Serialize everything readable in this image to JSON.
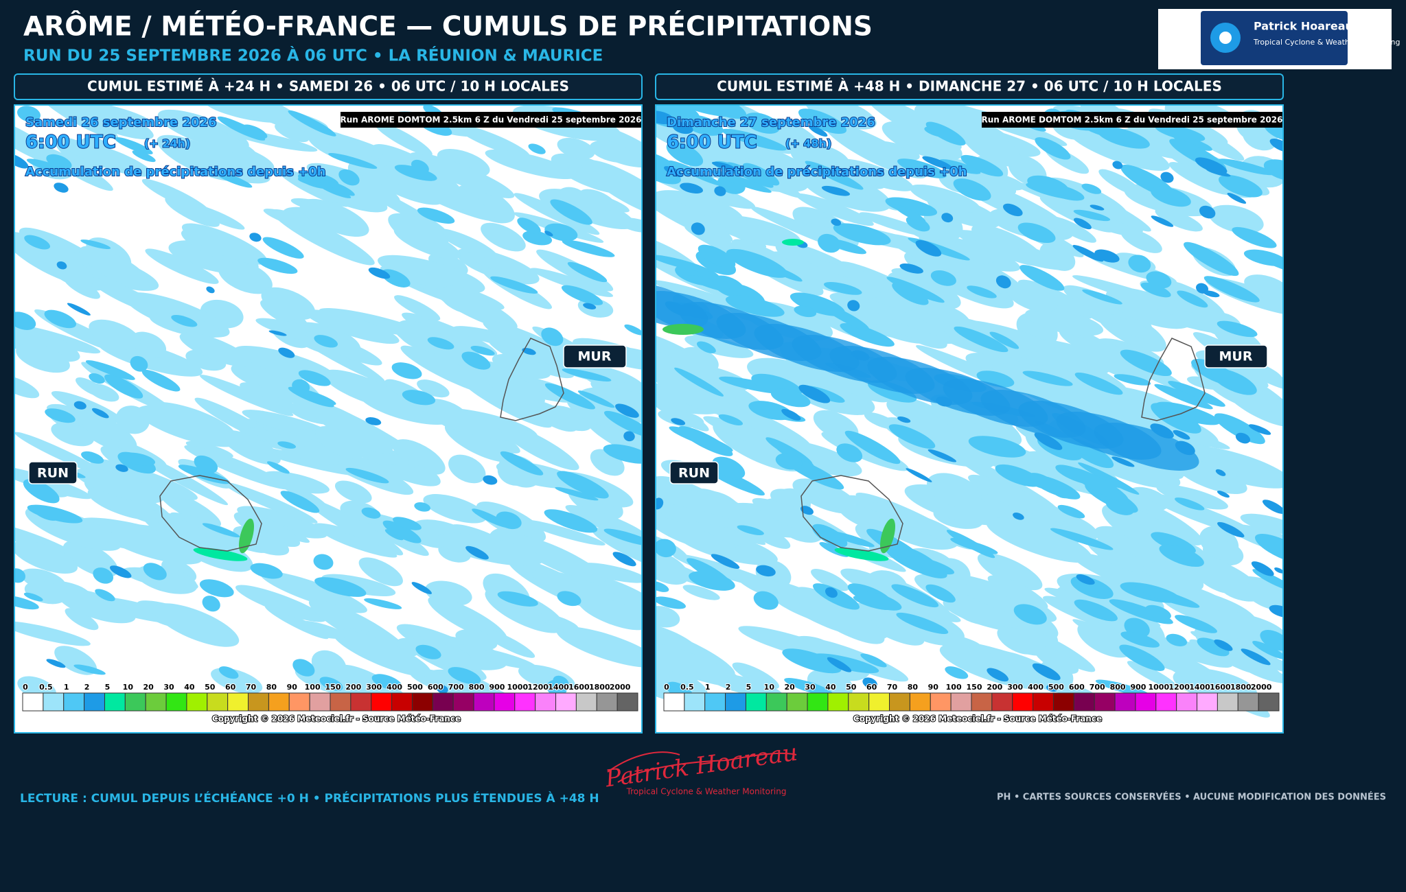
{
  "header": {
    "title": "ARÔME / MÉTÉO-FRANCE — CUMULS DE PRÉCIPITATIONS",
    "subtitle": "RUN DU 25 SEPTEMBRE 2026 À 06 UTC • LA RÉUNION & MAURICE"
  },
  "logo": {
    "name": "Patrick Hoareau",
    "tagline": "Tropical Cyclone & Weather Monitoring"
  },
  "panels": [
    {
      "header": "CUMUL ESTIMÉ À +24 H • SAMEDI 26 • 06 UTC / 10 H LOCALES",
      "map": {
        "date": "Samedi 26 septembre 2026",
        "time": "6:00 UTC",
        "lead": "(+ 24h)",
        "caption": "Accumulation de précipitations depuis +0h",
        "run_info": "Run AROME DOMTOM 2.5km 6 Z du Vendredi 25 septembre 2026",
        "label_mur": "MUR",
        "label_run": "RUN",
        "legend": {
          "values": [
            0,
            0.5,
            1,
            2,
            5,
            10,
            20,
            30,
            40,
            50,
            60,
            70,
            80,
            90,
            100,
            150,
            200,
            300,
            400,
            500,
            600,
            700,
            800,
            900,
            1000,
            1200,
            1400,
            1600,
            1800,
            2000
          ],
          "colors": [
            "#ffffff",
            "#9de4fa",
            "#4fc8f5",
            "#1e9be6",
            "#00e8a0",
            "#3cc85a",
            "#6ccc3c",
            "#32e614",
            "#a0f000",
            "#c8dc1e",
            "#f0f02d",
            "#c8961e",
            "#f5a01e",
            "#ff9664",
            "#e1a0a0",
            "#c86446",
            "#c83232",
            "#ff0000",
            "#c80000",
            "#8c0000",
            "#780050",
            "#960064",
            "#be00be",
            "#e600e6",
            "#ff32ff",
            "#fa82fa",
            "#ffaaff",
            "#c8c8c8",
            "#969696",
            "#646464"
          ]
        },
        "copyright": "Copyright © 2026 Meteociel.fr - Source Météo-France"
      }
    },
    {
      "header": "CUMUL ESTIMÉ À +48 H • DIMANCHE 27 • 06 UTC / 10 H LOCALES",
      "map": {
        "date": "Dimanche 27 septembre 2026",
        "time": "6:00 UTC",
        "lead": "(+ 48h)",
        "caption": "Accumulation de précipitations depuis +0h",
        "run_info": "Run AROME DOMTOM 2.5km 6 Z du Vendredi 25 septembre 2026",
        "label_mur": "MUR",
        "label_run": "RUN",
        "legend": {
          "values": [
            0,
            0.5,
            1,
            2,
            5,
            10,
            20,
            30,
            40,
            50,
            60,
            70,
            80,
            90,
            100,
            150,
            200,
            300,
            400,
            500,
            600,
            700,
            800,
            900,
            1000,
            1200,
            1400,
            1600,
            1800,
            2000
          ],
          "colors": [
            "#ffffff",
            "#9de4fa",
            "#4fc8f5",
            "#1e9be6",
            "#00e8a0",
            "#3cc85a",
            "#6ccc3c",
            "#32e614",
            "#a0f000",
            "#c8dc1e",
            "#f0f02d",
            "#c8961e",
            "#f5a01e",
            "#ff9664",
            "#e1a0a0",
            "#c86446",
            "#c83232",
            "#ff0000",
            "#c80000",
            "#8c0000",
            "#780050",
            "#960064",
            "#be00be",
            "#e600e6",
            "#ff32ff",
            "#fa82fa",
            "#ffaaff",
            "#c8c8c8",
            "#969696",
            "#646464"
          ]
        },
        "copyright": "Copyright © 2026 Meteociel.fr - Source Météo-France"
      }
    }
  ],
  "signature": {
    "name": "Patrick Hoareau",
    "tagline": "Tropical Cyclone & Weather Monitoring"
  },
  "footer": {
    "note": "LECTURE : CUMUL DEPUIS L’ÉCHÉANCE +0 H • PRÉCIPITATIONS PLUS ÉTENDUES À +48 H",
    "credits": "PH • CARTES SOURCES CONSERVÉES • AUCUNE MODIFICATION DES DONNÉES"
  }
}
